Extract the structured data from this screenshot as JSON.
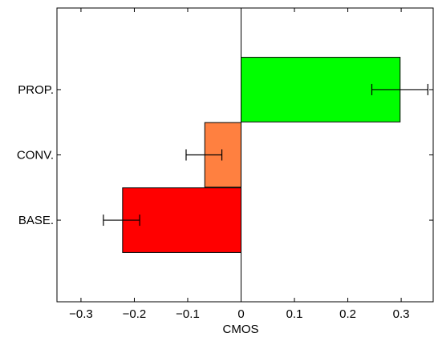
{
  "chart_data": {
    "type": "bar",
    "orientation": "horizontal",
    "categories": [
      "PROP.",
      "CONV.",
      "BASE."
    ],
    "values": [
      0.298,
      -0.068,
      -0.222
    ],
    "errors": [
      {
        "low": 0.245,
        "high": 0.35
      },
      {
        "low": -0.103,
        "high": -0.036
      },
      {
        "low": -0.258,
        "high": -0.19
      }
    ],
    "colors": [
      "#00ff00",
      "#ff8040",
      "#ff0000"
    ],
    "xlabel": "CMOS",
    "ylabel": "",
    "xlim": [
      -0.345,
      0.36
    ],
    "xticks": [
      -0.3,
      -0.2,
      -0.1,
      0,
      0.1,
      0.2,
      0.3
    ],
    "xtick_labels": [
      "−0.3",
      "−0.2",
      "−0.1",
      "0",
      "0.1",
      "0.2",
      "0.3"
    ],
    "grid": false,
    "zero_line": true
  }
}
